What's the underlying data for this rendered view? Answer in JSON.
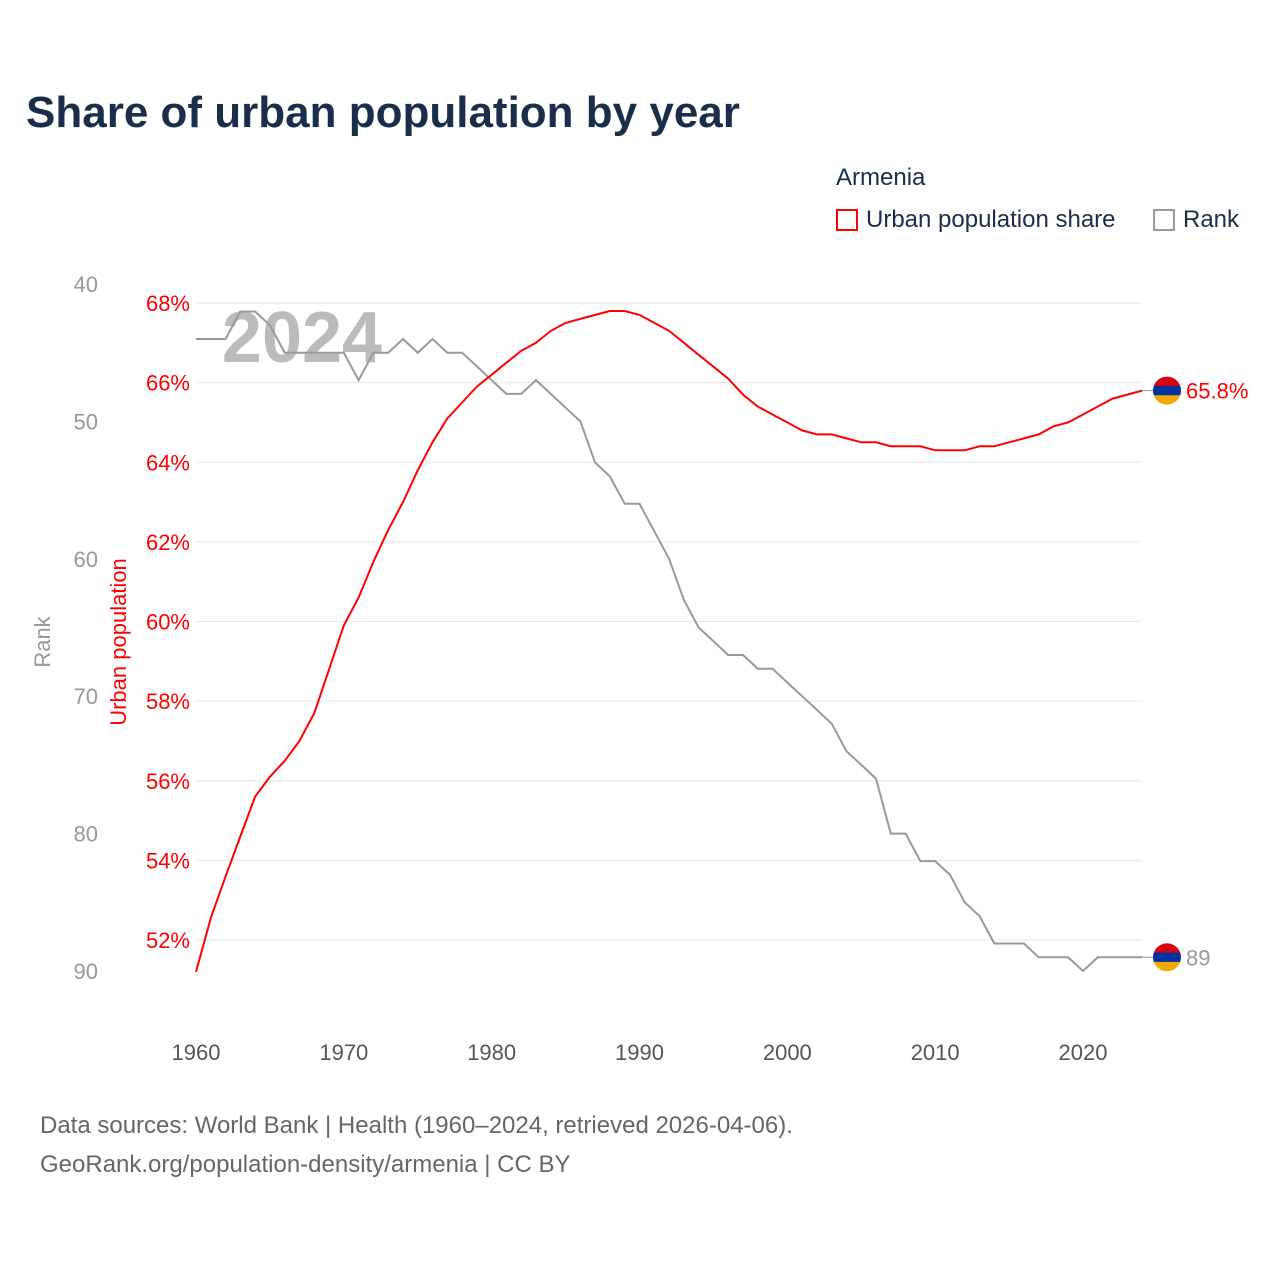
{
  "title": "Share of urban population by year",
  "legend": {
    "country": "Armenia",
    "items": [
      {
        "label": "Urban population share",
        "color": "#ff0000"
      },
      {
        "label": "Rank",
        "color": "#999999"
      }
    ]
  },
  "footer": {
    "line1": "Data sources: World Bank | Health (1960–2024, retrieved 2026-04-06).",
    "line2": "GeoRank.org/population-density/armenia | CC BY"
  },
  "chart_data": {
    "type": "line",
    "title": "Share of urban population by year",
    "watermark_year": "2024",
    "x": [
      1960,
      1961,
      1962,
      1963,
      1964,
      1965,
      1966,
      1967,
      1968,
      1969,
      1970,
      1971,
      1972,
      1973,
      1974,
      1975,
      1976,
      1977,
      1978,
      1979,
      1980,
      1981,
      1982,
      1983,
      1984,
      1985,
      1986,
      1987,
      1988,
      1989,
      1990,
      1991,
      1992,
      1993,
      1994,
      1995,
      1996,
      1997,
      1998,
      1999,
      2000,
      2001,
      2002,
      2003,
      2004,
      2005,
      2006,
      2007,
      2008,
      2009,
      2010,
      2011,
      2012,
      2013,
      2014,
      2015,
      2016,
      2017,
      2018,
      2019,
      2020,
      2021,
      2022,
      2023,
      2024
    ],
    "xlim": [
      1960,
      2024
    ],
    "xticks": [
      "1960",
      "1970",
      "1980",
      "1990",
      "2000",
      "2010",
      "2020"
    ],
    "series": [
      {
        "name": "Urban population share",
        "axis": "left",
        "ylabel": "Urban population",
        "ylim": [
          52,
          68
        ],
        "yticks": [
          "52%",
          "54%",
          "56%",
          "58%",
          "60%",
          "62%",
          "64%",
          "66%",
          "68%"
        ],
        "color": "#ff0000",
        "end_label": "65.8%",
        "values": [
          51.2,
          52.55,
          53.6,
          54.6,
          55.6,
          56.1,
          56.5,
          57.0,
          57.7,
          58.8,
          59.9,
          60.6,
          61.5,
          62.3,
          63.0,
          63.8,
          64.5,
          65.1,
          65.5,
          65.9,
          66.2,
          66.5,
          66.8,
          67.0,
          67.3,
          67.5,
          67.6,
          67.7,
          67.8,
          67.8,
          67.7,
          67.5,
          67.3,
          67.0,
          66.7,
          66.4,
          66.1,
          65.7,
          65.4,
          65.2,
          65.0,
          64.8,
          64.7,
          64.7,
          64.6,
          64.5,
          64.5,
          64.4,
          64.4,
          64.4,
          64.3,
          64.3,
          64.3,
          64.4,
          64.4,
          64.5,
          64.6,
          64.7,
          64.9,
          65.0,
          65.2,
          65.4,
          65.6,
          65.7,
          65.8
        ]
      },
      {
        "name": "Rank",
        "axis": "far-left",
        "ylabel": "Rank",
        "ylim": [
          40,
          90
        ],
        "inverted": true,
        "yticks": [
          "40",
          "50",
          "60",
          "70",
          "80",
          "90"
        ],
        "color": "#999999",
        "end_label": "89",
        "values": [
          44,
          44,
          44,
          42,
          42,
          43,
          45,
          45,
          45,
          45,
          45,
          47,
          45,
          45,
          44,
          45,
          44,
          45,
          45,
          46,
          47,
          48,
          48,
          47,
          48,
          49,
          50,
          53,
          54,
          56,
          56,
          58,
          60,
          63,
          65,
          66,
          67,
          67,
          68,
          68,
          69,
          70,
          71,
          72,
          74,
          75,
          76,
          80,
          80,
          82,
          82,
          83,
          85,
          86,
          88,
          88,
          88,
          89,
          89,
          89,
          90,
          89,
          89,
          89,
          89
        ]
      }
    ],
    "grid": true,
    "legend_position": "top-right"
  }
}
